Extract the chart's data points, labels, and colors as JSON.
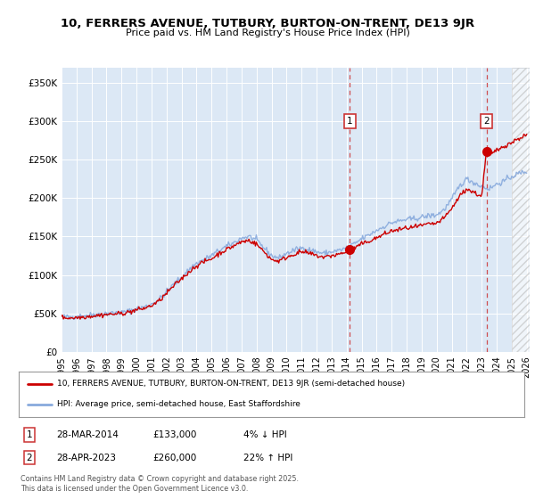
{
  "title_line1": "10, FERRERS AVENUE, TUTBURY, BURTON-ON-TRENT, DE13 9JR",
  "title_line2": "Price paid vs. HM Land Registry's House Price Index (HPI)",
  "ylabel_ticks": [
    "£0",
    "£50K",
    "£100K",
    "£150K",
    "£200K",
    "£250K",
    "£300K",
    "£350K"
  ],
  "ytick_values": [
    0,
    50000,
    100000,
    150000,
    200000,
    250000,
    300000,
    350000
  ],
  "ylim": [
    0,
    370000
  ],
  "xlim_start": 1995.0,
  "xlim_end": 2026.2,
  "sale1_date": 2014.22,
  "sale1_price": 133000,
  "sale1_label": "1",
  "sale1_hpi_text": "4% ↓ HPI",
  "sale1_date_text": "28-MAR-2014",
  "sale2_date": 2023.32,
  "sale2_price": 260000,
  "sale2_label": "2",
  "sale2_hpi_text": "22% ↑ HPI",
  "sale2_date_text": "28-APR-2023",
  "line_color_price": "#cc0000",
  "line_color_hpi": "#88aadd",
  "background_color": "#ffffff",
  "plot_bg_color": "#dce8f5",
  "grid_color": "#ffffff",
  "legend_line1": "10, FERRERS AVENUE, TUTBURY, BURTON-ON-TRENT, DE13 9JR (semi-detached house)",
  "legend_line2": "HPI: Average price, semi-detached house, East Staffordshire",
  "footnote": "Contains HM Land Registry data © Crown copyright and database right 2025.\nThis data is licensed under the Open Government Licence v3.0.",
  "xtick_years": [
    1995,
    1996,
    1997,
    1998,
    1999,
    2000,
    2001,
    2002,
    2003,
    2004,
    2005,
    2006,
    2007,
    2008,
    2009,
    2010,
    2011,
    2012,
    2013,
    2014,
    2015,
    2016,
    2017,
    2018,
    2019,
    2020,
    2021,
    2022,
    2023,
    2024,
    2025,
    2026
  ],
  "hpi_anchors": [
    [
      1995.0,
      46000
    ],
    [
      1995.5,
      45000
    ],
    [
      1996.0,
      46000
    ],
    [
      1996.5,
      47000
    ],
    [
      1997.0,
      48000
    ],
    [
      1997.5,
      49000
    ],
    [
      1998.0,
      50000
    ],
    [
      1998.5,
      50500
    ],
    [
      1999.0,
      51000
    ],
    [
      1999.5,
      53000
    ],
    [
      2000.0,
      56000
    ],
    [
      2000.5,
      58000
    ],
    [
      2001.0,
      62000
    ],
    [
      2001.5,
      68000
    ],
    [
      2002.0,
      78000
    ],
    [
      2002.5,
      88000
    ],
    [
      2003.0,
      97000
    ],
    [
      2003.5,
      107000
    ],
    [
      2004.0,
      115000
    ],
    [
      2004.5,
      120000
    ],
    [
      2005.0,
      125000
    ],
    [
      2005.5,
      132000
    ],
    [
      2006.0,
      137000
    ],
    [
      2006.5,
      142000
    ],
    [
      2007.0,
      148000
    ],
    [
      2007.5,
      150000
    ],
    [
      2008.0,
      145000
    ],
    [
      2008.5,
      135000
    ],
    [
      2009.0,
      125000
    ],
    [
      2009.5,
      122000
    ],
    [
      2010.0,
      128000
    ],
    [
      2010.5,
      132000
    ],
    [
      2011.0,
      135000
    ],
    [
      2011.5,
      133000
    ],
    [
      2012.0,
      130000
    ],
    [
      2012.5,
      128000
    ],
    [
      2013.0,
      130000
    ],
    [
      2013.5,
      132000
    ],
    [
      2014.0,
      135000
    ],
    [
      2014.22,
      138000
    ],
    [
      2014.5,
      140000
    ],
    [
      2015.0,
      147000
    ],
    [
      2015.5,
      152000
    ],
    [
      2016.0,
      158000
    ],
    [
      2016.5,
      163000
    ],
    [
      2017.0,
      168000
    ],
    [
      2017.5,
      170000
    ],
    [
      2018.0,
      172000
    ],
    [
      2018.5,
      173000
    ],
    [
      2019.0,
      175000
    ],
    [
      2019.5,
      177000
    ],
    [
      2020.0,
      178000
    ],
    [
      2020.5,
      185000
    ],
    [
      2021.0,
      198000
    ],
    [
      2021.5,
      215000
    ],
    [
      2022.0,
      225000
    ],
    [
      2022.5,
      220000
    ],
    [
      2023.0,
      215000
    ],
    [
      2023.32,
      213000
    ],
    [
      2023.5,
      212000
    ],
    [
      2024.0,
      218000
    ],
    [
      2024.5,
      222000
    ],
    [
      2025.0,
      228000
    ],
    [
      2025.5,
      232000
    ],
    [
      2026.0,
      235000
    ]
  ],
  "price_anchors": [
    [
      1995.0,
      45000
    ],
    [
      1995.5,
      44000
    ],
    [
      1996.0,
      44500
    ],
    [
      1996.5,
      45500
    ],
    [
      1997.0,
      46500
    ],
    [
      1997.5,
      47500
    ],
    [
      1998.0,
      48500
    ],
    [
      1998.5,
      49000
    ],
    [
      1999.0,
      50000
    ],
    [
      1999.5,
      51500
    ],
    [
      2000.0,
      54500
    ],
    [
      2000.5,
      56500
    ],
    [
      2001.0,
      60000
    ],
    [
      2001.5,
      66000
    ],
    [
      2002.0,
      76000
    ],
    [
      2002.5,
      86000
    ],
    [
      2003.0,
      95000
    ],
    [
      2003.5,
      104000
    ],
    [
      2004.0,
      112000
    ],
    [
      2004.5,
      117000
    ],
    [
      2005.0,
      121000
    ],
    [
      2005.5,
      128000
    ],
    [
      2006.0,
      133000
    ],
    [
      2006.5,
      138000
    ],
    [
      2007.0,
      143000
    ],
    [
      2007.5,
      145000
    ],
    [
      2008.0,
      140000
    ],
    [
      2008.5,
      130000
    ],
    [
      2009.0,
      120000
    ],
    [
      2009.5,
      118000
    ],
    [
      2010.0,
      123000
    ],
    [
      2010.5,
      127000
    ],
    [
      2011.0,
      130000
    ],
    [
      2011.5,
      128000
    ],
    [
      2012.0,
      125000
    ],
    [
      2012.5,
      123000
    ],
    [
      2013.0,
      125000
    ],
    [
      2013.5,
      127000
    ],
    [
      2014.0,
      130000
    ],
    [
      2014.22,
      133000
    ],
    [
      2014.5,
      135000
    ],
    [
      2015.0,
      140000
    ],
    [
      2015.5,
      144000
    ],
    [
      2016.0,
      148000
    ],
    [
      2016.5,
      153000
    ],
    [
      2017.0,
      157000
    ],
    [
      2017.5,
      159000
    ],
    [
      2018.0,
      161000
    ],
    [
      2018.5,
      162000
    ],
    [
      2019.0,
      164000
    ],
    [
      2019.5,
      166000
    ],
    [
      2020.0,
      167000
    ],
    [
      2020.5,
      174000
    ],
    [
      2021.0,
      186000
    ],
    [
      2021.5,
      202000
    ],
    [
      2022.0,
      212000
    ],
    [
      2022.5,
      207000
    ],
    [
      2023.0,
      202000
    ],
    [
      2023.32,
      260000
    ],
    [
      2023.5,
      255000
    ],
    [
      2024.0,
      262000
    ],
    [
      2024.5,
      268000
    ],
    [
      2025.0,
      272000
    ],
    [
      2025.5,
      278000
    ],
    [
      2026.0,
      282000
    ]
  ]
}
